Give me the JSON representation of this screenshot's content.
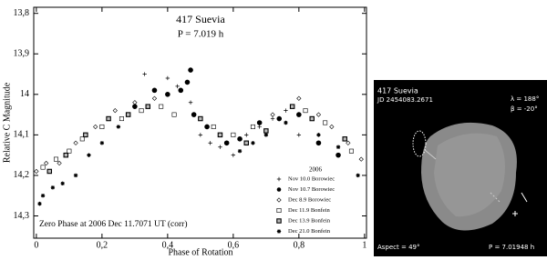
{
  "chart_data": {
    "type": "scatter",
    "title": "417 Suevia",
    "subtitle": "P = 7.019 h",
    "xlabel": "Phase of Rotation",
    "ylabel": "Relative C Magnitude",
    "annotation": "Zero Phase at 2006 Dec 11.7071 UT (corr)",
    "legend_title": "2006",
    "legend_position": "lower right",
    "xlim": [
      -0.008,
      1.006
    ],
    "ylim": [
      13.785,
      14.355
    ],
    "y_inverted": true,
    "xticks": [
      0,
      {
        "value": 0.2,
        "label": "0,2"
      },
      {
        "value": 0.4,
        "label": "0,4"
      },
      {
        "value": 0.6,
        "label": "0,6"
      },
      {
        "value": 0.8,
        "label": "0,8"
      },
      1
    ],
    "yticks": [
      {
        "value": 13.8,
        "label": "13,8"
      },
      {
        "value": 13.9,
        "label": "13,9"
      },
      14,
      {
        "value": 14.1,
        "label": "14,1"
      },
      {
        "value": 14.2,
        "label": "14,2"
      },
      {
        "value": 14.3,
        "label": "14,3"
      }
    ],
    "series": [
      {
        "name": "Nov 10.0 Borowiec",
        "color": "#000000",
        "marker": "plus",
        "x": [
          0.3,
          0.33,
          0.36,
          0.4,
          0.43,
          0.47,
          0.5,
          0.53,
          0.56,
          0.6,
          0.64,
          0.68,
          0.72,
          0.76,
          0.8
        ],
        "values": [
          14.02,
          13.95,
          13.99,
          13.96,
          13.98,
          14.02,
          14.1,
          14.12,
          14.13,
          14.15,
          14.1,
          14.08,
          14.06,
          14.04,
          14.1
        ]
      },
      {
        "name": "Nov 10.7 Borowiec",
        "color": "#000000",
        "marker": "filled-circle",
        "x": [
          0.3,
          0.36,
          0.4,
          0.44,
          0.46,
          0.47,
          0.48,
          0.52,
          0.58,
          0.62,
          0.68,
          0.74,
          0.8,
          0.86,
          0.92
        ],
        "values": [
          14.03,
          13.99,
          14.0,
          13.99,
          13.97,
          13.94,
          14.05,
          14.08,
          14.12,
          14.11,
          14.07,
          14.06,
          14.05,
          14.12,
          14.15
        ]
      },
      {
        "name": "Dec 8.9 Borowiec",
        "color": "#000000",
        "marker": "diamond",
        "x": [
          0.0,
          0.03,
          0.07,
          0.12,
          0.18,
          0.24,
          0.3,
          0.36,
          0.72,
          0.8,
          0.86,
          0.9,
          0.95,
          0.99
        ],
        "values": [
          14.19,
          14.17,
          14.17,
          14.12,
          14.08,
          14.04,
          14.02,
          14.01,
          14.05,
          14.01,
          14.05,
          14.08,
          14.12,
          14.16
        ]
      },
      {
        "name": "Dec 11.9 Bonfein",
        "color": "#000000",
        "marker": "square",
        "x": [
          0.02,
          0.06,
          0.1,
          0.14,
          0.2,
          0.26,
          0.32,
          0.38,
          0.42,
          0.54,
          0.6,
          0.66,
          0.82,
          0.88,
          0.96
        ],
        "values": [
          14.18,
          14.16,
          14.14,
          14.11,
          14.08,
          14.06,
          14.04,
          14.03,
          14.05,
          14.08,
          14.1,
          14.08,
          14.04,
          14.07,
          14.14
        ]
      },
      {
        "name": "Dec 13.9 Bonfein",
        "color": "#000000",
        "marker": "dotted-square",
        "x": [
          0.04,
          0.09,
          0.15,
          0.22,
          0.28,
          0.34,
          0.5,
          0.56,
          0.64,
          0.7,
          0.78,
          0.84,
          0.94
        ],
        "values": [
          14.19,
          14.15,
          14.1,
          14.06,
          14.05,
          14.03,
          14.06,
          14.1,
          14.12,
          14.09,
          14.03,
          14.06,
          14.11
        ]
      },
      {
        "name": "Dec 21.0 Bonfein",
        "color": "#000000",
        "marker": "star",
        "x": [
          0.01,
          0.02,
          0.05,
          0.08,
          0.12,
          0.16,
          0.2,
          0.25,
          0.62,
          0.66,
          0.7,
          0.76,
          0.86,
          0.92,
          0.98
        ],
        "values": [
          14.27,
          14.25,
          14.23,
          14.22,
          14.2,
          14.15,
          14.12,
          14.08,
          14.14,
          14.12,
          14.1,
          14.07,
          14.1,
          14.13,
          14.2
        ]
      }
    ]
  },
  "model_panel": {
    "name": "417 Suevia",
    "jd": "JD 2454083.2671",
    "lambda": "λ = 188°",
    "beta": "β = -20°",
    "aspect": "Aspect = 49°",
    "period": "P = 7.01948 h"
  }
}
